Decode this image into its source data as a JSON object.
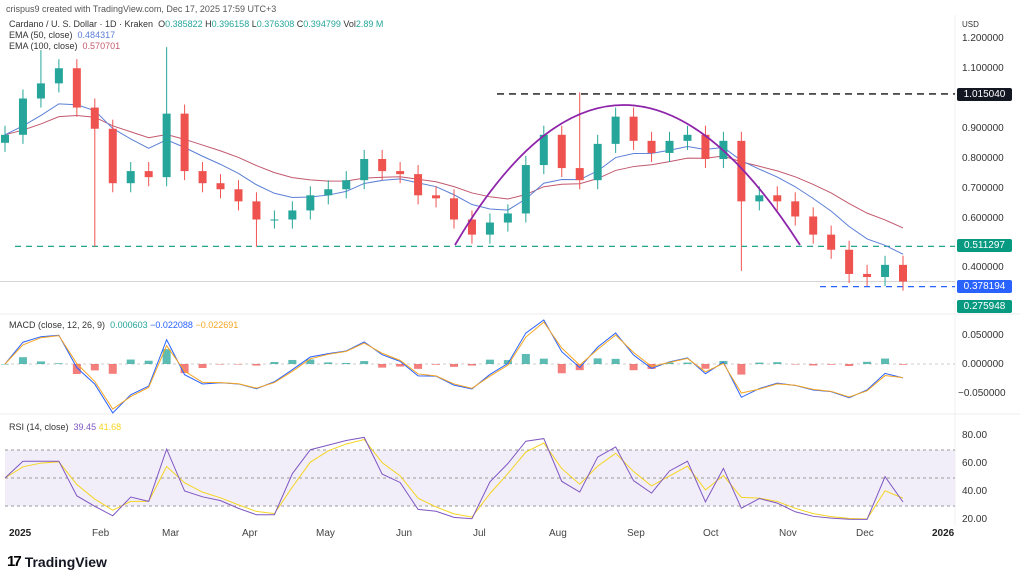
{
  "header": {
    "credit": "crispus9 created with TradingView.com, Dec 17, 2025 17:59 UTC+3"
  },
  "legend": {
    "symbol": "Cardano / U. S. Dollar · 1D · Kraken",
    "o_label": "O",
    "o": "0.385822",
    "h_label": "H",
    "h": "0.396158",
    "l_label": "L",
    "l": "0.376308",
    "c_label": "C",
    "c": "0.394799",
    "vol_label": "Vol",
    "vol": "2.89 M",
    "ema50_label": "EMA (50, close)",
    "ema50": "0.484317",
    "ema100_label": "EMA (100, close)",
    "ema100": "0.570701",
    "macd_label": "MACD (close, 12, 26, 9)",
    "macd_hist": "0.000603",
    "macd_line": "−0.022088",
    "macd_signal": "−0.022691",
    "rsi_label": "RSI (14, close)",
    "rsi": "39.45",
    "rsi_ma": "41.68"
  },
  "price_axis": {
    "unit": "USD",
    "ticks": [
      "1.200000",
      "1.100000",
      "0.900000",
      "0.800000",
      "0.700000",
      "0.600000",
      "0.400000"
    ]
  },
  "price_tags": {
    "resistance": "1.015040",
    "support": "0.511297",
    "low": "0.378194",
    "target": "0.275948"
  },
  "macd_axis": {
    "ticks": [
      "0.050000",
      "0.000000",
      "−0.050000"
    ]
  },
  "rsi_axis": {
    "ticks": [
      "80.00",
      "60.00",
      "40.00",
      "20.00"
    ]
  },
  "x_axis": {
    "labels": [
      "2025",
      "Feb",
      "Mar",
      "Apr",
      "May",
      "Jun",
      "Jul",
      "Aug",
      "Sep",
      "Oct",
      "Nov",
      "Dec",
      "2026"
    ]
  },
  "footer": {
    "logo": "TradingView"
  },
  "colors": {
    "up": "#26a69a",
    "down": "#ef5350",
    "ema50": "#5b7fd6",
    "ema100": "#c2586d",
    "macd": "#2962ff",
    "signal": "#f5a623",
    "rsi": "#7e57c2",
    "arc": "#8e24aa",
    "tag_black": "#131722",
    "tag_green": "#089981",
    "tag_blue": "#2962ff"
  },
  "chart_data": {
    "type": "candlestick",
    "interval": "weekly approximation of daily chart",
    "dates": [
      "2025-01-01",
      "2025-01-08",
      "2025-01-15",
      "2025-01-22",
      "2025-01-29",
      "2025-02-05",
      "2025-02-12",
      "2025-02-19",
      "2025-02-26",
      "2025-03-05",
      "2025-03-12",
      "2025-03-19",
      "2025-03-26",
      "2025-04-02",
      "2025-04-09",
      "2025-04-16",
      "2025-04-23",
      "2025-04-30",
      "2025-05-07",
      "2025-05-14",
      "2025-05-21",
      "2025-05-28",
      "2025-06-04",
      "2025-06-11",
      "2025-06-18",
      "2025-06-25",
      "2025-07-02",
      "2025-07-09",
      "2025-07-16",
      "2025-07-23",
      "2025-07-30",
      "2025-08-06",
      "2025-08-13",
      "2025-08-20",
      "2025-08-27",
      "2025-09-03",
      "2025-09-10",
      "2025-09-17",
      "2025-09-24",
      "2025-10-01",
      "2025-10-08",
      "2025-10-15",
      "2025-10-22",
      "2025-10-29",
      "2025-11-05",
      "2025-11-12",
      "2025-11-19",
      "2025-11-26",
      "2025-12-03",
      "2025-12-10",
      "2025-12-17"
    ],
    "close": [
      0.88,
      1.0,
      1.05,
      1.1,
      0.97,
      0.9,
      0.72,
      0.76,
      0.74,
      0.95,
      0.76,
      0.72,
      0.7,
      0.66,
      0.6,
      0.6,
      0.63,
      0.68,
      0.7,
      0.73,
      0.8,
      0.76,
      0.75,
      0.68,
      0.67,
      0.6,
      0.55,
      0.59,
      0.62,
      0.78,
      0.88,
      0.77,
      0.73,
      0.85,
      0.94,
      0.86,
      0.82,
      0.86,
      0.88,
      0.8,
      0.86,
      0.66,
      0.68,
      0.66,
      0.61,
      0.55,
      0.5,
      0.42,
      0.41,
      0.45,
      0.395
    ],
    "wicks": [
      {
        "date": "2025-01-15",
        "high": 1.16
      },
      {
        "date": "2025-03-05",
        "high": 1.17
      },
      {
        "date": "2025-04-09",
        "low": 0.51
      },
      {
        "date": "2025-02-05",
        "low": 0.51
      },
      {
        "date": "2025-10-15",
        "low": 0.43
      },
      {
        "date": "2025-08-13",
        "high": 1.02
      }
    ],
    "levels": [
      1.01504,
      0.511297,
      0.378194,
      0.275948
    ],
    "ylim": [
      0.26,
      1.25
    ],
    "macd_ylim": [
      -0.075,
      0.085
    ],
    "rsi_ylim": [
      15,
      90
    ],
    "rsi_band": [
      30,
      70
    ]
  }
}
